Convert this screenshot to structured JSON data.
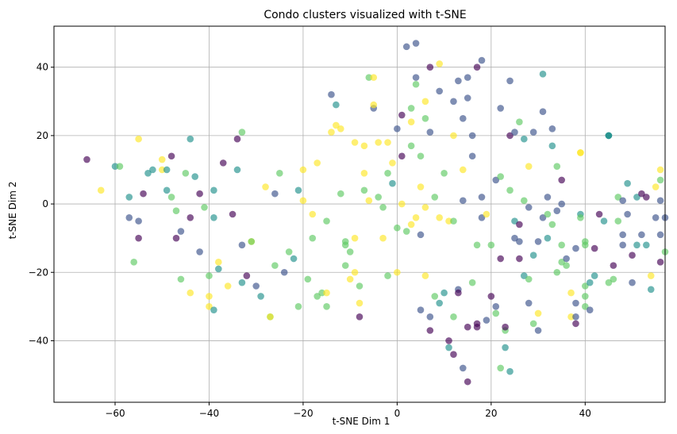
{
  "chart_data": {
    "type": "scatter",
    "title": "Condo clusters visualized with t-SNE",
    "xlabel": "t-SNE Dim 1",
    "ylabel": "t-SNE Dim 2",
    "xlim": [
      -73,
      57
    ],
    "ylim": [
      -58,
      52
    ],
    "xticks": [
      -60,
      -40,
      -20,
      0,
      20,
      40
    ],
    "yticks": [
      -40,
      -20,
      0,
      20,
      40
    ],
    "xtick_labels": [
      "−60",
      "−40",
      "−20",
      "0",
      "20",
      "40"
    ],
    "ytick_labels": [
      "−40",
      "−20",
      "0",
      "20",
      "40"
    ],
    "grid": true,
    "legend": "none",
    "marker_alpha": 0.65,
    "cluster_colors": [
      "#440154",
      "#3b528b",
      "#21918c",
      "#5ec962",
      "#fde725"
    ],
    "points": [
      [
        -66,
        13,
        0
      ],
      [
        -63,
        4,
        4
      ],
      [
        -60,
        11,
        2
      ],
      [
        -59,
        11,
        3
      ],
      [
        -57,
        2,
        2
      ],
      [
        -57,
        -4,
        1
      ],
      [
        -56,
        -17,
        3
      ],
      [
        -55,
        -5,
        1
      ],
      [
        -55,
        -10,
        0
      ],
      [
        -54,
        3,
        0
      ],
      [
        -55,
        19,
        4
      ],
      [
        -53,
        9,
        2
      ],
      [
        -52,
        10,
        2
      ],
      [
        -50,
        13,
        4
      ],
      [
        -50,
        10,
        4
      ],
      [
        -49,
        10,
        2
      ],
      [
        -49,
        4,
        2
      ],
      [
        -48,
        2,
        3
      ],
      [
        -48,
        14,
        0
      ],
      [
        -47,
        -2,
        3
      ],
      [
        -47,
        -10,
        0
      ],
      [
        -46,
        -8,
        1
      ],
      [
        -46,
        -22,
        3
      ],
      [
        -45,
        9,
        3
      ],
      [
        -44,
        19,
        2
      ],
      [
        -44,
        -4,
        0
      ],
      [
        -44,
        -26,
        4
      ],
      [
        -43,
        8,
        2
      ],
      [
        -42,
        -14,
        1
      ],
      [
        -42,
        3,
        0
      ],
      [
        -41,
        -1,
        3
      ],
      [
        -40,
        -27,
        4
      ],
      [
        -40,
        -30,
        4
      ],
      [
        -40,
        -21,
        3
      ],
      [
        -39,
        4,
        2
      ],
      [
        -39,
        -4,
        2
      ],
      [
        -38,
        -17,
        4
      ],
      [
        -38,
        -19,
        2
      ],
      [
        -39,
        -31,
        2
      ],
      [
        -37,
        12,
        0
      ],
      [
        -36,
        -24,
        4
      ],
      [
        -35,
        -3,
        0
      ],
      [
        -34,
        19,
        0
      ],
      [
        -34,
        10,
        2
      ],
      [
        -33,
        21,
        3
      ],
      [
        -33,
        -12,
        1
      ],
      [
        -33,
        -23,
        2
      ],
      [
        -32,
        -21,
        0
      ],
      [
        -31,
        -11,
        4
      ],
      [
        -31,
        -11,
        3
      ],
      [
        -30,
        -24,
        1
      ],
      [
        -29,
        -27,
        2
      ],
      [
        -28,
        5,
        4
      ],
      [
        -27,
        -33,
        3
      ],
      [
        -27,
        -33,
        4
      ],
      [
        -26,
        3,
        1
      ],
      [
        -26,
        -18,
        3
      ],
      [
        -25,
        9,
        3
      ],
      [
        -24,
        -20,
        1
      ],
      [
        -23,
        -14,
        3
      ],
      [
        -22,
        -16,
        2
      ],
      [
        -21,
        4,
        2
      ],
      [
        -21,
        -30,
        3
      ],
      [
        -20,
        10,
        4
      ],
      [
        -20,
        1,
        4
      ],
      [
        -19,
        -22,
        3
      ],
      [
        -18,
        -3,
        4
      ],
      [
        -18,
        -10,
        3
      ],
      [
        -17,
        12,
        4
      ],
      [
        -17,
        -27,
        3
      ],
      [
        -16,
        -26,
        3
      ],
      [
        -15,
        -5,
        3
      ],
      [
        -15,
        -30,
        3
      ],
      [
        -15,
        -26,
        4
      ],
      [
        -14,
        32,
        1
      ],
      [
        -14,
        21,
        4
      ],
      [
        -13,
        29,
        2
      ],
      [
        -13,
        23,
        4
      ],
      [
        -12,
        22,
        4
      ],
      [
        -12,
        3,
        3
      ],
      [
        -11,
        -12,
        3
      ],
      [
        -11,
        -11,
        3
      ],
      [
        -11,
        -18,
        3
      ],
      [
        -10,
        -22,
        4
      ],
      [
        -10,
        -14,
        3
      ],
      [
        -9,
        18,
        4
      ],
      [
        -9,
        -10,
        4
      ],
      [
        -9,
        -20,
        4
      ],
      [
        -8,
        -24,
        3
      ],
      [
        -8,
        -29,
        4
      ],
      [
        -8,
        -33,
        0
      ],
      [
        -7,
        17,
        4
      ],
      [
        -7,
        9,
        4
      ],
      [
        -7,
        4,
        3
      ],
      [
        -6,
        37,
        3
      ],
      [
        -6,
        1,
        4
      ],
      [
        -5,
        28,
        1
      ],
      [
        -5,
        37,
        4
      ],
      [
        -5,
        29,
        4
      ],
      [
        -4,
        18,
        4
      ],
      [
        -4,
        2,
        3
      ],
      [
        -3,
        -1,
        3
      ],
      [
        -3,
        -10,
        4
      ],
      [
        -2,
        9,
        3
      ],
      [
        -2,
        18,
        4
      ],
      [
        -2,
        -21,
        3
      ],
      [
        -1,
        12,
        4
      ],
      [
        -1,
        6,
        2
      ],
      [
        0,
        22,
        1
      ],
      [
        0,
        -7,
        3
      ],
      [
        0,
        -20,
        4
      ],
      [
        1,
        26,
        0
      ],
      [
        1,
        14,
        0
      ],
      [
        1,
        0,
        4
      ],
      [
        2,
        46,
        1
      ],
      [
        2,
        -8,
        3
      ],
      [
        3,
        28,
        3
      ],
      [
        3,
        17,
        3
      ],
      [
        3,
        -6,
        4
      ],
      [
        3,
        24,
        4
      ],
      [
        4,
        47,
        1
      ],
      [
        4,
        37,
        1
      ],
      [
        4,
        35,
        3
      ],
      [
        4,
        -4,
        4
      ],
      [
        5,
        14,
        3
      ],
      [
        5,
        5,
        4
      ],
      [
        5,
        -9,
        1
      ],
      [
        5,
        -31,
        1
      ],
      [
        6,
        -1,
        4
      ],
      [
        6,
        -21,
        4
      ],
      [
        6,
        30,
        4
      ],
      [
        6,
        25,
        3
      ],
      [
        7,
        40,
        0
      ],
      [
        7,
        21,
        1
      ],
      [
        7,
        -33,
        1
      ],
      [
        7,
        -37,
        0
      ],
      [
        8,
        2,
        3
      ],
      [
        8,
        -27,
        3
      ],
      [
        9,
        41,
        4
      ],
      [
        9,
        33,
        1
      ],
      [
        9,
        -29,
        2
      ],
      [
        9,
        -4,
        4
      ],
      [
        10,
        -26,
        2
      ],
      [
        10,
        9,
        3
      ],
      [
        11,
        -42,
        2
      ],
      [
        11,
        -40,
        0
      ],
      [
        11,
        -5,
        4
      ],
      [
        12,
        -44,
        0
      ],
      [
        12,
        30,
        1
      ],
      [
        12,
        -33,
        3
      ],
      [
        12,
        -5,
        3
      ],
      [
        12,
        20,
        4
      ],
      [
        13,
        -25,
        1
      ],
      [
        13,
        36,
        1
      ],
      [
        13,
        -26,
        0
      ],
      [
        14,
        1,
        1
      ],
      [
        14,
        10,
        4
      ],
      [
        14,
        -48,
        1
      ],
      [
        14,
        25,
        1
      ],
      [
        15,
        37,
        1
      ],
      [
        15,
        31,
        1
      ],
      [
        15,
        -36,
        0
      ],
      [
        15,
        -52,
        0
      ],
      [
        16,
        -23,
        3
      ],
      [
        16,
        14,
        1
      ],
      [
        16,
        20,
        1
      ],
      [
        17,
        -12,
        3
      ],
      [
        17,
        -35,
        0
      ],
      [
        17,
        -36,
        0
      ],
      [
        17,
        40,
        0
      ],
      [
        18,
        -4,
        1
      ],
      [
        18,
        42,
        1
      ],
      [
        18,
        2,
        1
      ],
      [
        19,
        -3,
        4
      ],
      [
        19,
        -34,
        1
      ],
      [
        20,
        -12,
        3
      ],
      [
        20,
        -27,
        0
      ],
      [
        21,
        -30,
        1
      ],
      [
        21,
        -32,
        3
      ],
      [
        21,
        7,
        1
      ],
      [
        22,
        -16,
        0
      ],
      [
        22,
        8,
        3
      ],
      [
        22,
        -48,
        3
      ],
      [
        22,
        28,
        1
      ],
      [
        23,
        -37,
        3
      ],
      [
        23,
        -36,
        0
      ],
      [
        23,
        -42,
        2
      ],
      [
        24,
        36,
        1
      ],
      [
        24,
        20,
        0
      ],
      [
        24,
        -49,
        2
      ],
      [
        24,
        4,
        3
      ],
      [
        25,
        -10,
        1
      ],
      [
        25,
        21,
        1
      ],
      [
        25,
        -5,
        2
      ],
      [
        26,
        24,
        3
      ],
      [
        26,
        -11,
        1
      ],
      [
        26,
        -16,
        0
      ],
      [
        26,
        -6,
        0
      ],
      [
        27,
        19,
        2
      ],
      [
        27,
        -21,
        2
      ],
      [
        27,
        1,
        3
      ],
      [
        28,
        -22,
        3
      ],
      [
        28,
        -29,
        1
      ],
      [
        28,
        11,
        4
      ],
      [
        28,
        -1,
        1
      ],
      [
        29,
        21,
        1
      ],
      [
        29,
        -15,
        2
      ],
      [
        29,
        -35,
        3
      ],
      [
        30,
        -11,
        1
      ],
      [
        30,
        -32,
        4
      ],
      [
        30,
        -37,
        1
      ],
      [
        31,
        -4,
        1
      ],
      [
        31,
        38,
        2
      ],
      [
        31,
        27,
        1
      ],
      [
        32,
        -10,
        2
      ],
      [
        32,
        2,
        1
      ],
      [
        32,
        -3,
        3
      ],
      [
        33,
        22,
        1
      ],
      [
        33,
        -6,
        3
      ],
      [
        33,
        17,
        2
      ],
      [
        34,
        11,
        3
      ],
      [
        34,
        -20,
        3
      ],
      [
        34,
        -2,
        1
      ],
      [
        35,
        0,
        1
      ],
      [
        35,
        -17,
        3
      ],
      [
        35,
        -12,
        3
      ],
      [
        35,
        7,
        0
      ],
      [
        36,
        -16,
        1
      ],
      [
        36,
        -18,
        3
      ],
      [
        37,
        -26,
        4
      ],
      [
        37,
        -33,
        4
      ],
      [
        38,
        -29,
        1
      ],
      [
        38,
        -33,
        1
      ],
      [
        38,
        -13,
        1
      ],
      [
        38,
        -35,
        0
      ],
      [
        39,
        -3,
        2
      ],
      [
        39,
        15,
        4
      ],
      [
        39,
        15,
        4
      ],
      [
        39,
        -4,
        3
      ],
      [
        40,
        -11,
        3
      ],
      [
        40,
        -12,
        3
      ],
      [
        40,
        -30,
        3
      ],
      [
        40,
        -24,
        3
      ],
      [
        40,
        -27,
        3
      ],
      [
        41,
        -23,
        2
      ],
      [
        41,
        -31,
        1
      ],
      [
        42,
        -21,
        2
      ],
      [
        42,
        -13,
        0
      ],
      [
        43,
        -3,
        0
      ],
      [
        44,
        -5,
        2
      ],
      [
        45,
        20,
        2
      ],
      [
        45,
        20,
        2
      ],
      [
        45,
        20,
        2
      ],
      [
        45,
        -23,
        3
      ],
      [
        46,
        -18,
        0
      ],
      [
        46,
        -22,
        3
      ],
      [
        47,
        2,
        3
      ],
      [
        47,
        -5,
        3
      ],
      [
        48,
        1,
        1
      ],
      [
        48,
        -12,
        1
      ],
      [
        48,
        -9,
        1
      ],
      [
        49,
        -3,
        1
      ],
      [
        49,
        6,
        2
      ],
      [
        50,
        -15,
        0
      ],
      [
        50,
        -23,
        1
      ],
      [
        51,
        2,
        2
      ],
      [
        51,
        -12,
        2
      ],
      [
        52,
        3,
        0
      ],
      [
        52,
        -9,
        1
      ],
      [
        53,
        -12,
        2
      ],
      [
        53,
        2,
        0
      ],
      [
        54,
        -25,
        2
      ],
      [
        54,
        -21,
        4
      ],
      [
        55,
        5,
        4
      ],
      [
        55,
        -4,
        1
      ],
      [
        56,
        -17,
        0
      ],
      [
        56,
        1,
        1
      ],
      [
        56,
        -9,
        1
      ],
      [
        56,
        10,
        4
      ],
      [
        56,
        7,
        3
      ],
      [
        57,
        -14,
        3
      ],
      [
        57,
        -4,
        1
      ],
      [
        58,
        5,
        0
      ]
    ]
  }
}
